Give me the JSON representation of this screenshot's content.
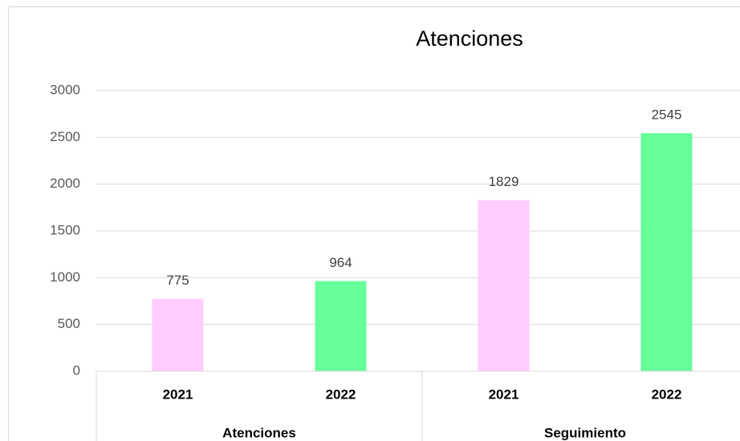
{
  "chart_data": {
    "type": "bar",
    "title": "Atenciones",
    "groups": [
      {
        "name": "Atenciones",
        "categories": [
          "2021",
          "2022"
        ],
        "values": [
          775,
          964
        ]
      },
      {
        "name": "Seguimiento",
        "categories": [
          "2021",
          "2022"
        ],
        "values": [
          1829,
          2545
        ]
      }
    ],
    "colors": [
      "#ffccff",
      "#66ff99"
    ],
    "ylim": [
      0,
      3000
    ],
    "yticks": [
      0,
      500,
      1000,
      1500,
      2000,
      2500,
      3000
    ],
    "grid": true
  }
}
